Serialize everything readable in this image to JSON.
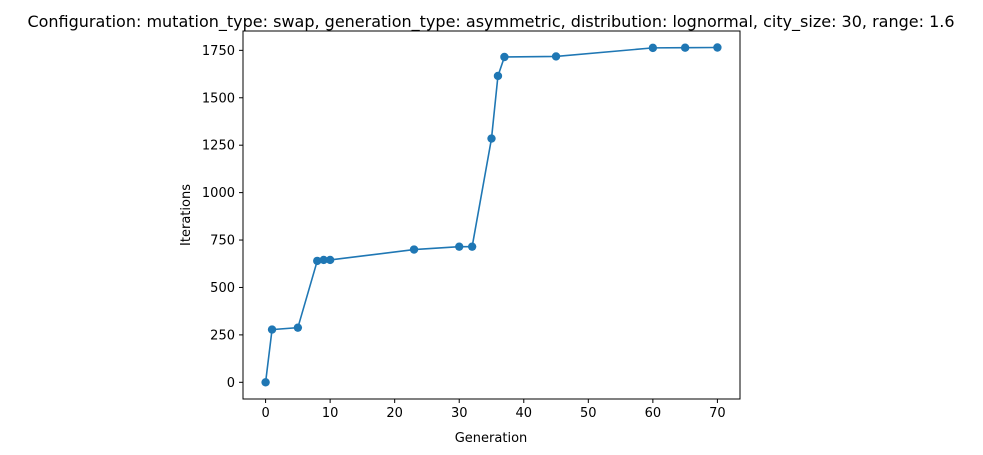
{
  "chart_data": {
    "type": "line",
    "title": "Configuration: mutation_type: swap, generation_type: asymmetric, distribution: lognormal, city_size: 30, range: 1.6",
    "xlabel": "Generation",
    "ylabel": "Iterations",
    "xlim": [
      -3.5,
      73.5
    ],
    "ylim": [
      -88,
      1852
    ],
    "xticks": [
      0,
      10,
      20,
      30,
      40,
      50,
      60,
      70
    ],
    "yticks": [
      0,
      250,
      500,
      750,
      1000,
      1250,
      1500,
      1750
    ],
    "grid": false,
    "marker": "circle",
    "series": [
      {
        "color": "#1f77b4",
        "x": [
          0,
          1,
          5,
          8,
          9,
          10,
          23,
          30,
          32,
          35,
          36,
          37,
          45,
          60,
          65,
          70
        ],
        "y": [
          0,
          278,
          288,
          640,
          645,
          645,
          700,
          715,
          715,
          1285,
          1615,
          1715,
          1718,
          1763,
          1764,
          1765
        ]
      }
    ]
  }
}
